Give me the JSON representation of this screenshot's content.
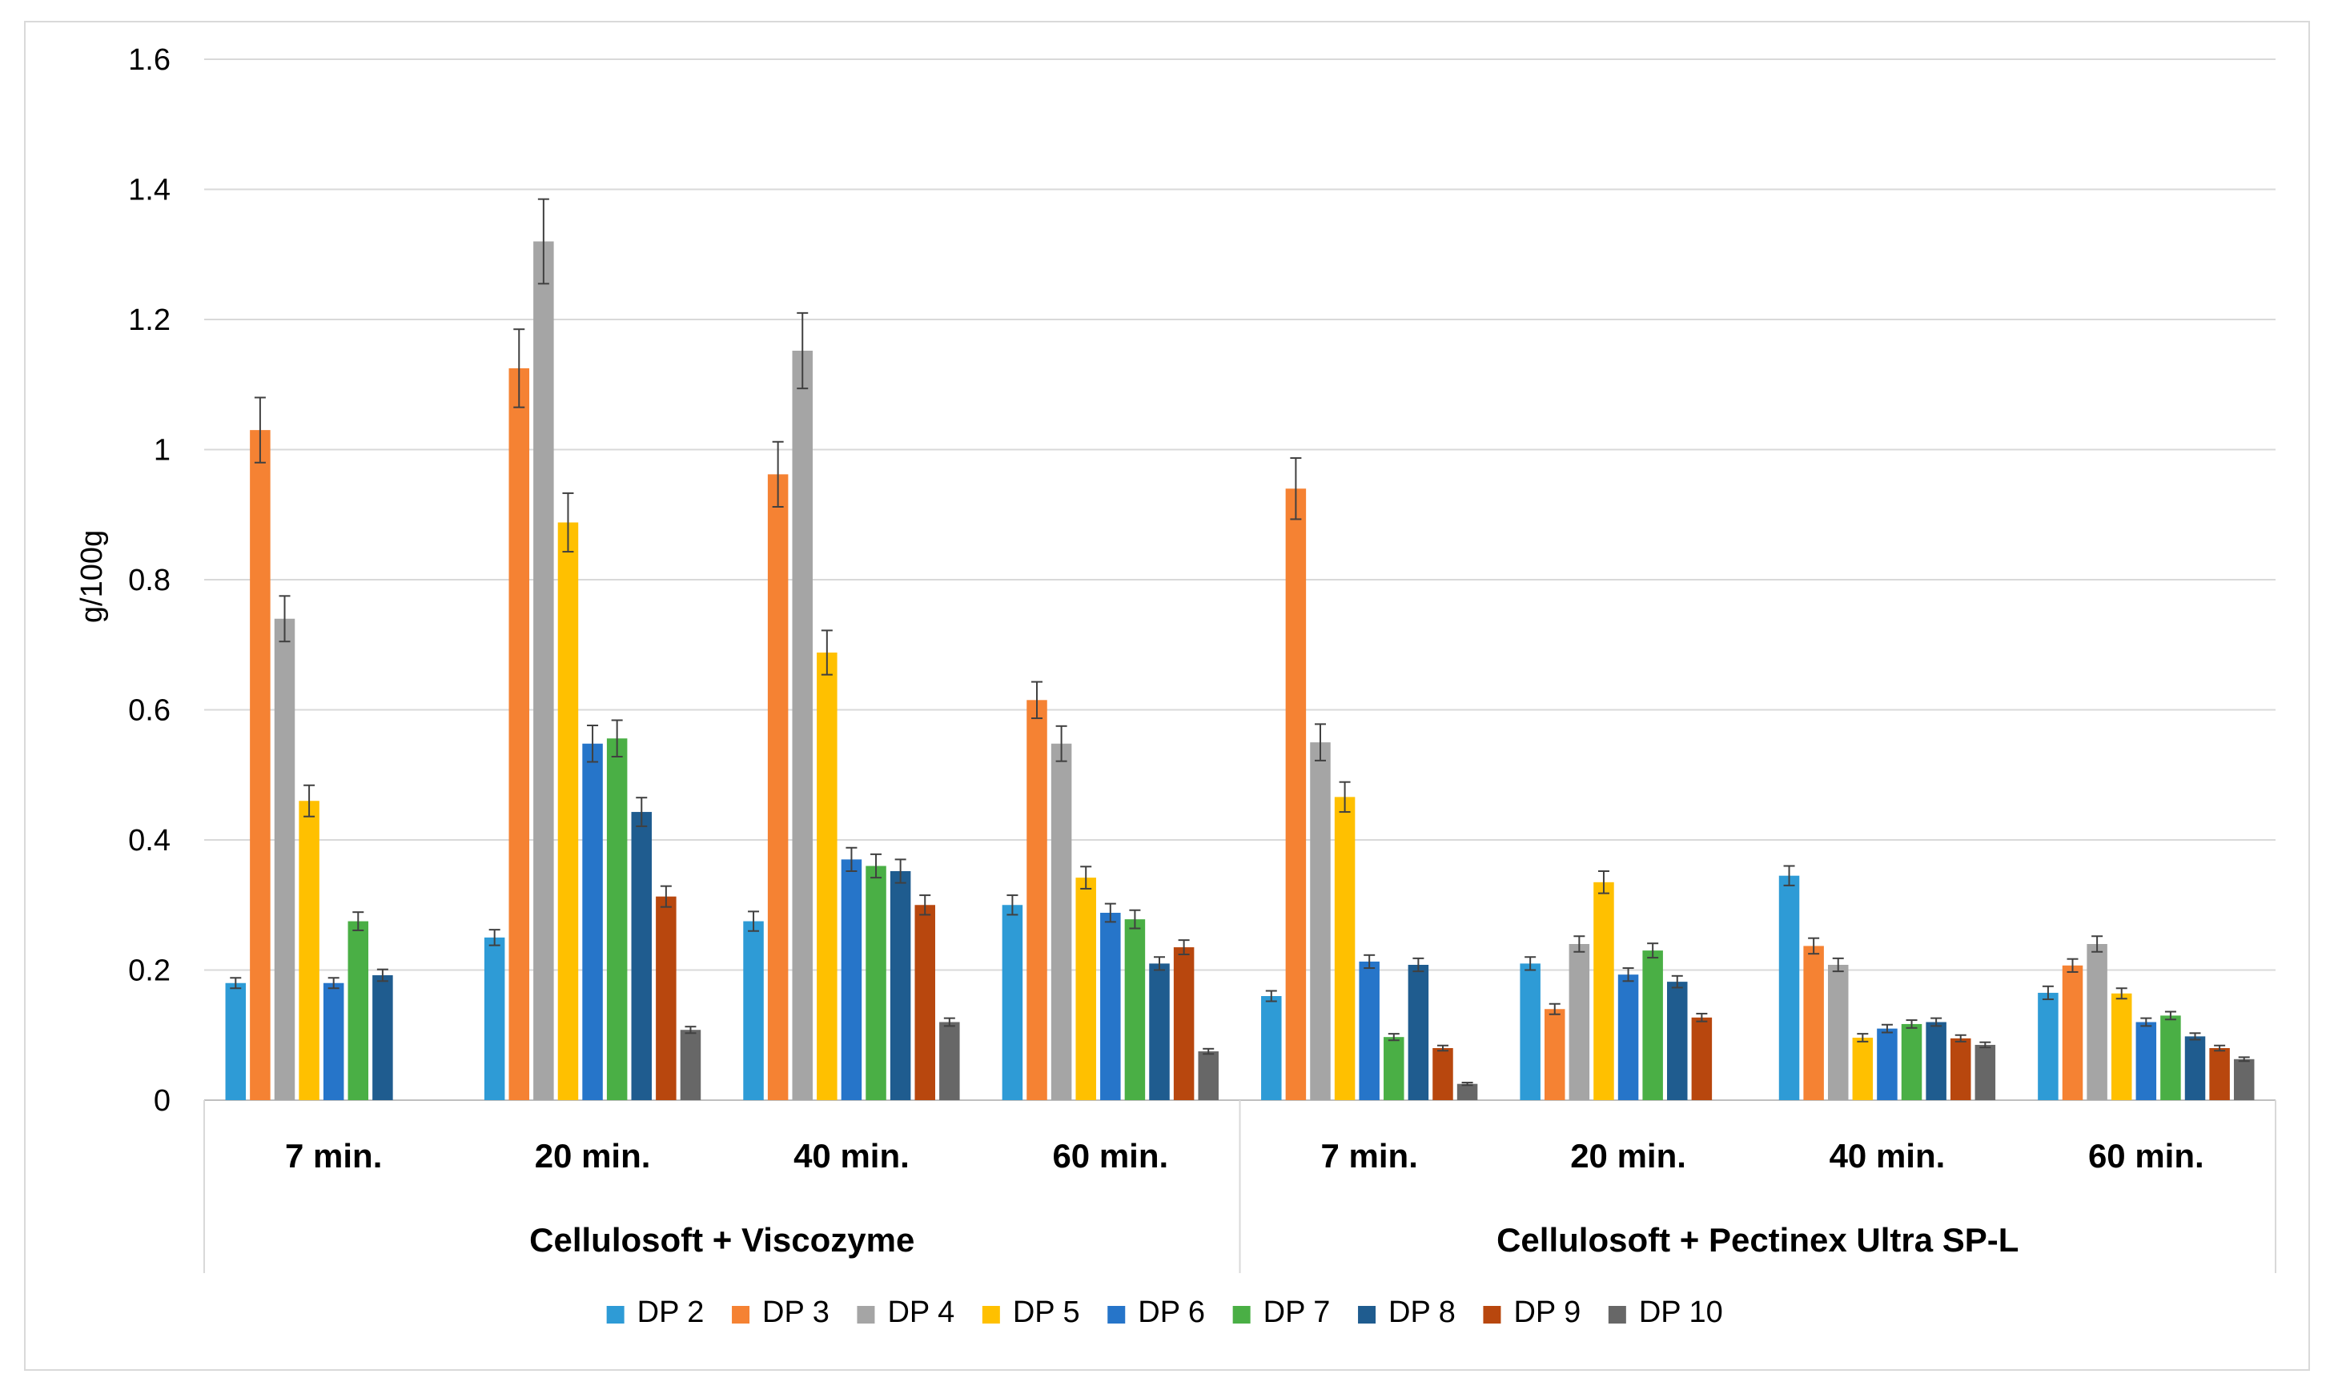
{
  "chart_data": {
    "type": "bar",
    "ylabel": "g/100g",
    "ylim": [
      0,
      1.6
    ],
    "yticks": [
      0,
      0.2,
      0.4,
      0.6,
      0.8,
      1,
      1.2,
      1.4,
      1.6
    ],
    "ytick_labels": [
      "0",
      "0.2",
      "0.4",
      "0.6",
      "0.8",
      "1",
      "1.2",
      "1.4",
      "1.6"
    ],
    "grid": true,
    "legend_position": "bottom",
    "groups": [
      {
        "label": "Cellulosoft + Viscozyme",
        "categories": [
          "7 min.",
          "20 min.",
          "40 min.",
          "60 min."
        ]
      },
      {
        "label": "Cellulosoft + Pectinex Ultra SP-L",
        "categories": [
          "7 min.",
          "20 min.",
          "40 min.",
          "60 min."
        ]
      }
    ],
    "categories": [
      "7 min.",
      "20 min.",
      "40 min.",
      "60 min.",
      "7 min.",
      "20 min.",
      "40 min.",
      "60 min."
    ],
    "series": [
      {
        "name": "DP 2",
        "color": "#2E9BD6",
        "values": [
          0.18,
          0.25,
          0.275,
          0.3,
          0.16,
          0.21,
          0.345,
          0.165
        ],
        "errors": [
          0.008,
          0.012,
          0.015,
          0.015,
          0.008,
          0.01,
          0.015,
          0.01
        ]
      },
      {
        "name": "DP 3",
        "color": "#F58233",
        "values": [
          1.03,
          1.125,
          0.962,
          0.615,
          0.94,
          0.14,
          0.237,
          0.207
        ],
        "errors": [
          0.05,
          0.06,
          0.05,
          0.028,
          0.047,
          0.008,
          0.012,
          0.01
        ]
      },
      {
        "name": "DP 4",
        "color": "#A5A5A5",
        "values": [
          0.74,
          1.32,
          1.152,
          0.548,
          0.55,
          0.24,
          0.208,
          0.24
        ],
        "errors": [
          0.035,
          0.065,
          0.058,
          0.027,
          0.028,
          0.012,
          0.01,
          0.012
        ]
      },
      {
        "name": "DP 5",
        "color": "#FFC000",
        "values": [
          0.46,
          0.888,
          0.688,
          0.342,
          0.466,
          0.335,
          0.096,
          0.164
        ],
        "errors": [
          0.024,
          0.045,
          0.034,
          0.017,
          0.023,
          0.017,
          0.006,
          0.008
        ]
      },
      {
        "name": "DP 6",
        "color": "#2675C9",
        "values": [
          0.18,
          0.548,
          0.37,
          0.288,
          0.213,
          0.193,
          0.11,
          0.12
        ],
        "errors": [
          0.008,
          0.028,
          0.018,
          0.014,
          0.01,
          0.01,
          0.006,
          0.006
        ]
      },
      {
        "name": "DP 7",
        "color": "#4AAF45",
        "values": [
          0.275,
          0.556,
          0.36,
          0.278,
          0.097,
          0.23,
          0.117,
          0.13
        ],
        "errors": [
          0.014,
          0.028,
          0.018,
          0.014,
          0.005,
          0.011,
          0.006,
          0.006
        ]
      },
      {
        "name": "DP 8",
        "color": "#1F5C8F",
        "values": [
          0.192,
          0.443,
          0.352,
          0.21,
          0.208,
          0.182,
          0.12,
          0.098
        ],
        "errors": [
          0.009,
          0.022,
          0.018,
          0.01,
          0.01,
          0.009,
          0.006,
          0.005
        ]
      },
      {
        "name": "DP 9",
        "color": "#B8470E",
        "values": [
          null,
          0.313,
          0.3,
          0.235,
          0.08,
          0.127,
          0.095,
          0.08
        ],
        "errors": [
          null,
          0.016,
          0.015,
          0.011,
          0.004,
          0.006,
          0.005,
          0.004
        ]
      },
      {
        "name": "DP 10",
        "color": "#676767",
        "values": [
          null,
          0.108,
          0.12,
          0.075,
          0.025,
          null,
          0.085,
          0.063
        ],
        "errors": [
          null,
          0.005,
          0.006,
          0.004,
          0.002,
          null,
          0.004,
          0.003
        ]
      }
    ]
  }
}
